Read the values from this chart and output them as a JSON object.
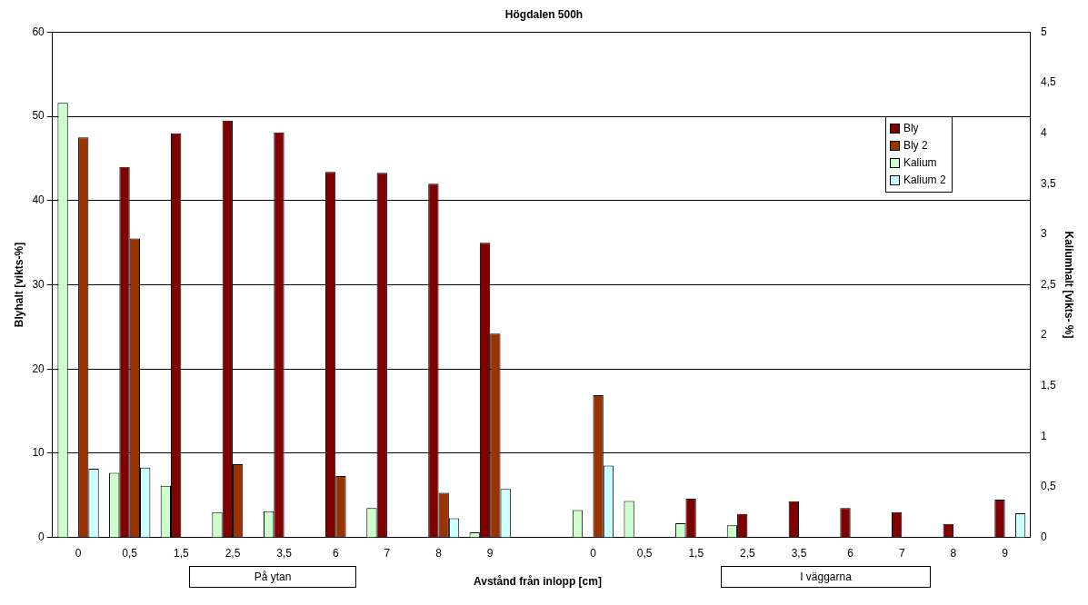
{
  "chart_data": {
    "type": "bar",
    "title": "Högdalen 500h",
    "xlabel": "Avstånd från inlopp [cm]",
    "ylabel": "Blyhalt [vikts-%]",
    "y2label": "Kaliumhalt [vikts- %]",
    "categories": [
      "0",
      "0,5",
      "1,5",
      "2,5",
      "3,5",
      "6",
      "7",
      "8",
      "9",
      null,
      "0",
      "0,5",
      "1,5",
      "2,5",
      "3,5",
      "6",
      "7",
      "8",
      "9"
    ],
    "series": [
      {
        "name": "Kalium",
        "color": "#ccffcc",
        "axis": "y2",
        "values": [
          4.3,
          0.64,
          0.51,
          0.25,
          0.26,
          null,
          0.29,
          null,
          0.05,
          null,
          0.27,
          0.36,
          0.14,
          0.12,
          null,
          null,
          null,
          null,
          null
        ]
      },
      {
        "name": "Bly",
        "color": "#800000",
        "values": [
          null,
          44,
          48,
          49.5,
          48.1,
          43.4,
          43.3,
          42,
          35,
          null,
          null,
          null,
          4.6,
          2.8,
          4.3,
          3.5,
          3,
          1.6,
          4.5
        ]
      },
      {
        "name": "Bly 2",
        "color": "#993300",
        "values": [
          47.5,
          35.5,
          null,
          8.7,
          null,
          7.3,
          null,
          5.3,
          24.2,
          null,
          16.9,
          null,
          null,
          null,
          null,
          null,
          null,
          null,
          null
        ]
      },
      {
        "name": "Kalium 2",
        "color": "#ccffff",
        "axis": "y2",
        "values": [
          0.68,
          0.69,
          null,
          null,
          null,
          null,
          null,
          0.19,
          0.48,
          null,
          0.71,
          null,
          null,
          null,
          null,
          null,
          null,
          null,
          0.24
        ]
      }
    ],
    "ylim": [
      0,
      60
    ],
    "yticks": [
      0,
      10,
      20,
      30,
      40,
      50,
      60
    ],
    "y2lim": [
      0,
      5
    ],
    "y2ticks": [
      0,
      {
        "value": 0.5,
        "label": "0,5"
      },
      1,
      {
        "value": 1.5,
        "label": "1,5"
      },
      2,
      {
        "value": 2.5,
        "label": "2,5"
      },
      3,
      {
        "value": 3.5,
        "label": "3,5"
      },
      4,
      {
        "value": 4.5,
        "label": "4,5"
      },
      5
    ],
    "grid": "y",
    "legend": "top right",
    "annotations": [
      "På ytan",
      "I väggarna"
    ]
  }
}
